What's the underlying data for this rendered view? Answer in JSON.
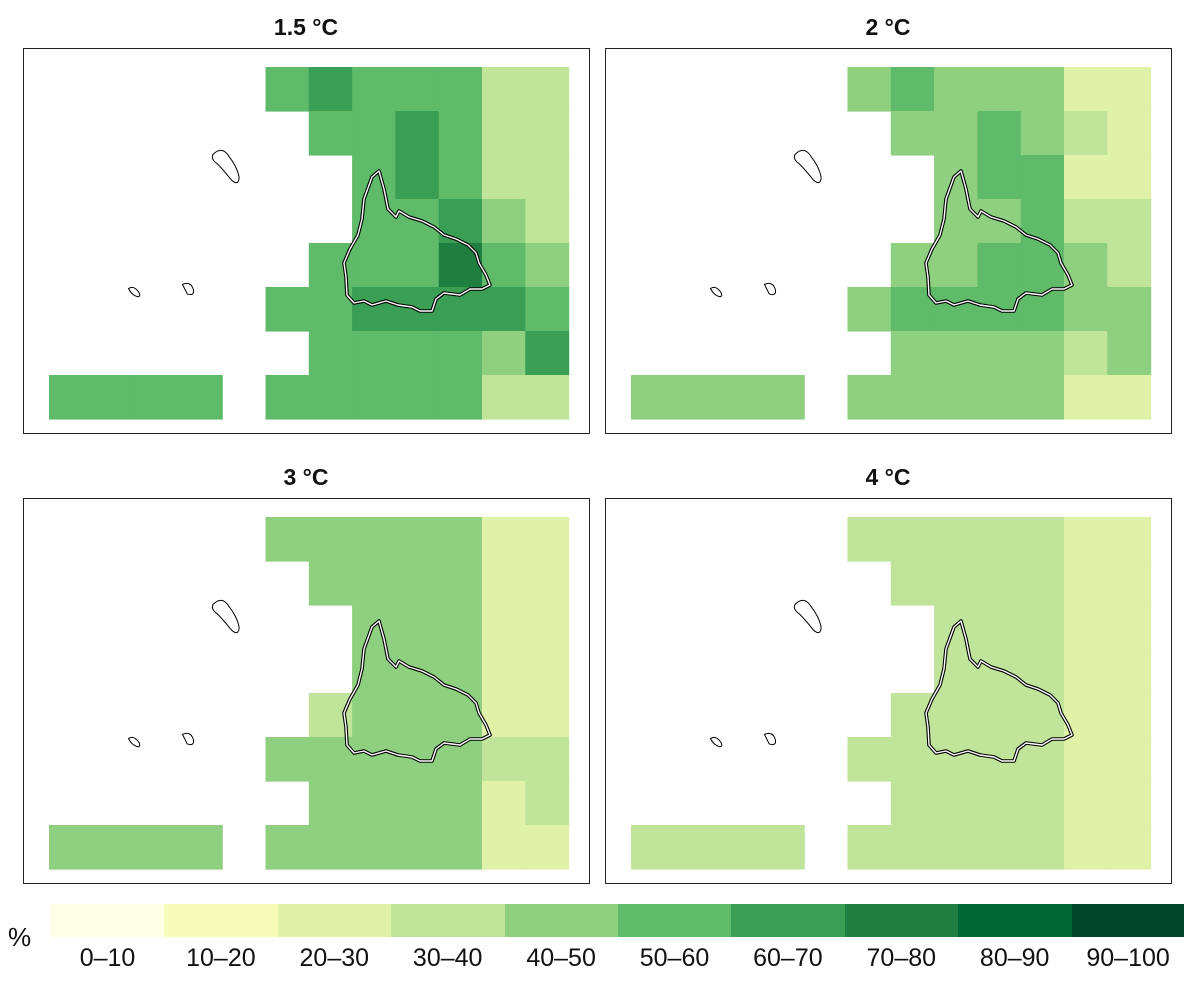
{
  "map": {
    "unit_label": "%",
    "panels": [
      {
        "title": "1.5 °C",
        "rows": [
          [
            null,
            null,
            null,
            null,
            null,
            5,
            6,
            5,
            5,
            5,
            3,
            3,
            null
          ],
          [
            null,
            null,
            null,
            null,
            null,
            null,
            5,
            5,
            6,
            5,
            3,
            3,
            null
          ],
          [
            null,
            null,
            null,
            null,
            null,
            null,
            null,
            5,
            6,
            5,
            3,
            3,
            null
          ],
          [
            null,
            null,
            null,
            null,
            null,
            null,
            null,
            5,
            5,
            6,
            4,
            3,
            null
          ],
          [
            null,
            null,
            null,
            null,
            null,
            null,
            5,
            5,
            5,
            7,
            5,
            4,
            null
          ],
          [
            null,
            null,
            null,
            null,
            null,
            5,
            5,
            6,
            6,
            6,
            6,
            5,
            null
          ],
          [
            null,
            null,
            null,
            null,
            null,
            null,
            5,
            5,
            5,
            5,
            4,
            6,
            null
          ],
          [
            5,
            5,
            5,
            5,
            null,
            5,
            5,
            5,
            5,
            5,
            3,
            3,
            null
          ]
        ]
      },
      {
        "title": "2 °C",
        "rows": [
          [
            null,
            null,
            null,
            null,
            null,
            4,
            5,
            4,
            4,
            4,
            2,
            2,
            null
          ],
          [
            null,
            null,
            null,
            null,
            null,
            null,
            4,
            4,
            5,
            4,
            3,
            2,
            null
          ],
          [
            null,
            null,
            null,
            null,
            null,
            null,
            null,
            4,
            5,
            5,
            2,
            2,
            null
          ],
          [
            null,
            null,
            null,
            null,
            null,
            null,
            null,
            4,
            4,
            5,
            3,
            3,
            null
          ],
          [
            null,
            null,
            null,
            null,
            null,
            null,
            4,
            4,
            5,
            5,
            4,
            3,
            null
          ],
          [
            null,
            null,
            null,
            null,
            null,
            4,
            5,
            5,
            5,
            5,
            4,
            4,
            null
          ],
          [
            null,
            null,
            null,
            null,
            null,
            null,
            4,
            4,
            4,
            4,
            3,
            4,
            null
          ],
          [
            4,
            4,
            4,
            4,
            null,
            4,
            4,
            4,
            4,
            4,
            2,
            2,
            null
          ]
        ]
      },
      {
        "title": "3 °C",
        "rows": [
          [
            null,
            null,
            null,
            null,
            null,
            4,
            4,
            4,
            4,
            4,
            2,
            2,
            null
          ],
          [
            null,
            null,
            null,
            null,
            null,
            null,
            4,
            4,
            4,
            4,
            2,
            2,
            null
          ],
          [
            null,
            null,
            null,
            null,
            null,
            null,
            null,
            4,
            4,
            4,
            2,
            2,
            null
          ],
          [
            null,
            null,
            null,
            null,
            null,
            null,
            null,
            4,
            4,
            4,
            2,
            2,
            null
          ],
          [
            null,
            null,
            null,
            null,
            null,
            null,
            3,
            4,
            4,
            4,
            2,
            2,
            null
          ],
          [
            null,
            null,
            null,
            null,
            null,
            4,
            4,
            4,
            4,
            4,
            3,
            3,
            null
          ],
          [
            null,
            null,
            null,
            null,
            null,
            null,
            4,
            4,
            4,
            4,
            2,
            3,
            null
          ],
          [
            4,
            4,
            4,
            4,
            null,
            4,
            4,
            4,
            4,
            4,
            2,
            2,
            null
          ]
        ]
      },
      {
        "title": "4 °C",
        "rows": [
          [
            null,
            null,
            null,
            null,
            null,
            3,
            3,
            3,
            3,
            3,
            2,
            2,
            null
          ],
          [
            null,
            null,
            null,
            null,
            null,
            null,
            3,
            3,
            3,
            3,
            2,
            2,
            null
          ],
          [
            null,
            null,
            null,
            null,
            null,
            null,
            null,
            3,
            3,
            3,
            2,
            2,
            null
          ],
          [
            null,
            null,
            null,
            null,
            null,
            null,
            null,
            3,
            3,
            3,
            2,
            2,
            null
          ],
          [
            null,
            null,
            null,
            null,
            null,
            null,
            3,
            3,
            3,
            3,
            2,
            2,
            null
          ],
          [
            null,
            null,
            null,
            null,
            null,
            3,
            3,
            3,
            3,
            3,
            2,
            2,
            null
          ],
          [
            null,
            null,
            null,
            null,
            null,
            null,
            3,
            3,
            3,
            3,
            2,
            2,
            null
          ],
          [
            3,
            3,
            3,
            3,
            null,
            3,
            3,
            3,
            3,
            3,
            2,
            2,
            null
          ]
        ]
      }
    ]
  },
  "legend": {
    "classes": [
      {
        "label": "0–10",
        "color": "#ffffe5"
      },
      {
        "label": "10–20",
        "color": "#f7fcb9"
      },
      {
        "label": "20–30",
        "color": "#e0f2a8"
      },
      {
        "label": "30–40",
        "color": "#bfe49a"
      },
      {
        "label": "40–50",
        "color": "#8fcf80"
      },
      {
        "label": "50–60",
        "color": "#5fba6a"
      },
      {
        "label": "60–70",
        "color": "#3a9e55"
      },
      {
        "label": "70–80",
        "color": "#1e7f40"
      },
      {
        "label": "80–90",
        "color": "#006837"
      },
      {
        "label": "90–100",
        "color": "#004529"
      }
    ]
  }
}
